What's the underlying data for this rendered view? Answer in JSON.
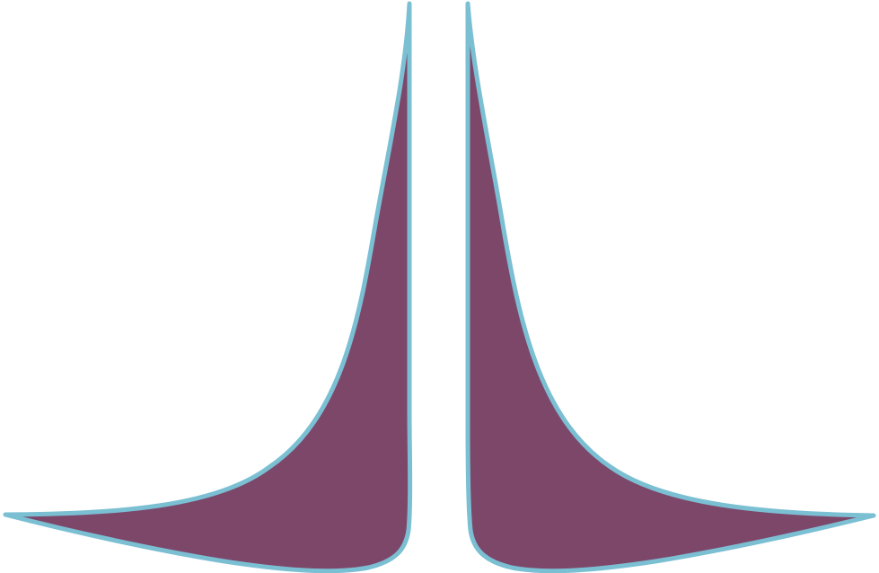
{
  "colors": {
    "background": "#ffffff",
    "fill": "#7d476a",
    "stroke": "#7bbfd3"
  },
  "shapes": [
    {
      "name": "left-curved-wing",
      "icon": "curved-triangle-shape"
    },
    {
      "name": "right-curved-wing",
      "icon": "curved-triangle-shape"
    }
  ]
}
